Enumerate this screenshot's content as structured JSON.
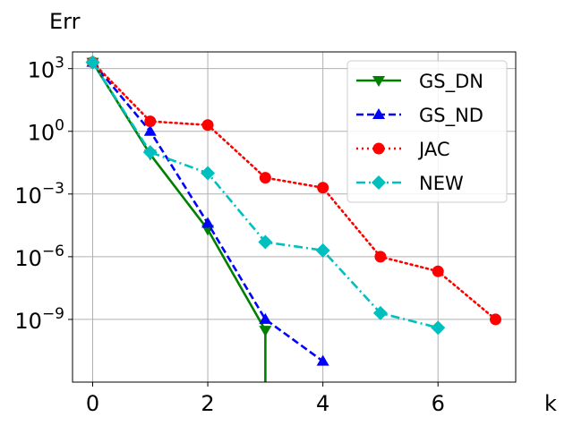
{
  "chart_data": {
    "type": "line",
    "ylabel": "Err",
    "xlabel": "k",
    "yscale": "log",
    "xlim": [
      -0.35,
      7.35
    ],
    "ylim_exponent": [
      -12.0,
      3.8
    ],
    "xticks": [
      0,
      2,
      4,
      6
    ],
    "yticks": [
      {
        "mantissa": "10",
        "exponent": "3",
        "power": 3
      },
      {
        "mantissa": "10",
        "exponent": "0",
        "power": 0
      },
      {
        "mantissa": "10",
        "exponent": "−3",
        "power": -3
      },
      {
        "mantissa": "10",
        "exponent": "−6",
        "power": -6
      },
      {
        "mantissa": "10",
        "exponent": "−9",
        "power": -9
      }
    ],
    "grid": true,
    "legend_position": "top-right",
    "series": [
      {
        "name": "GS_DN",
        "color": "#008000",
        "linestyle": "solid",
        "marker": "triangle-down",
        "x": [
          0,
          1,
          2,
          3
        ],
        "y": [
          2000,
          0.08,
          2e-05,
          3e-10
        ],
        "drop_to_zero_after_last": true
      },
      {
        "name": "GS_ND",
        "color": "#0000ff",
        "linestyle": "dashed",
        "marker": "triangle-up",
        "x": [
          0,
          1,
          2,
          3,
          4
        ],
        "y": [
          2000,
          1.0,
          4e-05,
          1e-09,
          1e-11
        ]
      },
      {
        "name": "JAC",
        "color": "#ff0000",
        "linestyle": "dotted",
        "marker": "circle",
        "x": [
          0,
          1,
          2,
          3,
          4,
          5,
          6,
          7
        ],
        "y": [
          2000,
          3.0,
          2.0,
          0.006,
          0.002,
          1e-06,
          2e-07,
          1e-09
        ]
      },
      {
        "name": "NEW",
        "color": "#00bfbf",
        "linestyle": "dashdot",
        "marker": "diamond",
        "x": [
          0,
          1,
          2,
          3,
          4,
          5,
          6
        ],
        "y": [
          2000,
          0.1,
          0.01,
          5e-06,
          2e-06,
          2e-09,
          4e-10
        ]
      }
    ]
  }
}
